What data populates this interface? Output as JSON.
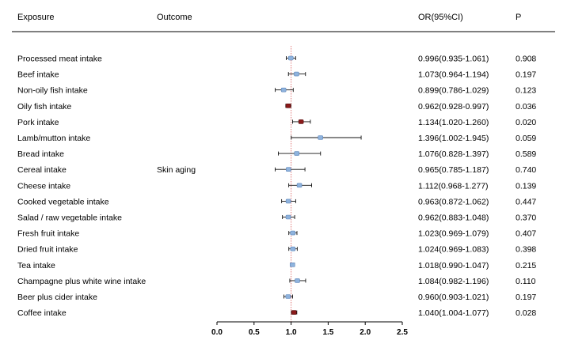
{
  "chart_data": {
    "type": "forest",
    "headers": {
      "exposure": "Exposure",
      "outcome": "Outcome",
      "or": "OR(95%CI)",
      "p": "P"
    },
    "outcome_label": "Skin aging",
    "reference_line": 1,
    "xlim": [
      0,
      2.5
    ],
    "x_ticks": [
      "0.0",
      "0.5",
      "1.0",
      "1.5",
      "2.0",
      "2.5"
    ],
    "colors": {
      "ns": "#8fb3dd",
      "sig": "#8b1a1a",
      "ref_line": "#e07a7a"
    },
    "rows": [
      {
        "exposure": "Processed meat intake",
        "or": 0.996,
        "lo": 0.935,
        "hi": 1.061,
        "or_text": "0.996(0.935-1.061)",
        "p": "0.908",
        "significant": false
      },
      {
        "exposure": "Beef intake",
        "or": 1.073,
        "lo": 0.964,
        "hi": 1.194,
        "or_text": "1.073(0.964-1.194)",
        "p": "0.197",
        "significant": false
      },
      {
        "exposure": "Non-oily fish intake",
        "or": 0.899,
        "lo": 0.786,
        "hi": 1.029,
        "or_text": "0.899(0.786-1.029)",
        "p": "0.123",
        "significant": false
      },
      {
        "exposure": "Oily fish intake",
        "or": 0.962,
        "lo": 0.928,
        "hi": 0.997,
        "or_text": "0.962(0.928-0.997)",
        "p": "0.036",
        "significant": true
      },
      {
        "exposure": "Pork intake",
        "or": 1.134,
        "lo": 1.02,
        "hi": 1.26,
        "or_text": "1.134(1.020-1.260)",
        "p": "0.020",
        "significant": true
      },
      {
        "exposure": "Lamb/mutton intake",
        "or": 1.396,
        "lo": 1.002,
        "hi": 1.945,
        "or_text": "1.396(1.002-1.945)",
        "p": "0.059",
        "significant": false
      },
      {
        "exposure": "Bread intake",
        "or": 1.076,
        "lo": 0.828,
        "hi": 1.397,
        "or_text": "1.076(0.828-1.397)",
        "p": "0.589",
        "significant": false
      },
      {
        "exposure": "Cereal intake",
        "or": 0.965,
        "lo": 0.785,
        "hi": 1.187,
        "or_text": "0.965(0.785-1.187)",
        "p": "0.740",
        "significant": false
      },
      {
        "exposure": "Cheese intake",
        "or": 1.112,
        "lo": 0.968,
        "hi": 1.277,
        "or_text": "1.112(0.968-1.277)",
        "p": "0.139",
        "significant": false
      },
      {
        "exposure": "Cooked vegetable intake",
        "or": 0.963,
        "lo": 0.872,
        "hi": 1.062,
        "or_text": "0.963(0.872-1.062)",
        "p": "0.447",
        "significant": false
      },
      {
        "exposure": "Salad / raw vegetable intake",
        "or": 0.962,
        "lo": 0.883,
        "hi": 1.048,
        "or_text": "0.962(0.883-1.048)",
        "p": "0.370",
        "significant": false
      },
      {
        "exposure": "Fresh fruit intake",
        "or": 1.023,
        "lo": 0.969,
        "hi": 1.079,
        "or_text": "1.023(0.969-1.079)",
        "p": "0.407",
        "significant": false
      },
      {
        "exposure": "Dried fruit intake",
        "or": 1.024,
        "lo": 0.969,
        "hi": 1.083,
        "or_text": "1.024(0.969-1.083)",
        "p": "0.398",
        "significant": false
      },
      {
        "exposure": "Tea intake",
        "or": 1.018,
        "lo": 0.99,
        "hi": 1.047,
        "or_text": "1.018(0.990-1.047)",
        "p": "0.215",
        "significant": false
      },
      {
        "exposure": "Champagne plus white wine intake",
        "or": 1.084,
        "lo": 0.982,
        "hi": 1.196,
        "or_text": "1.084(0.982-1.196)",
        "p": "0.110",
        "significant": false
      },
      {
        "exposure": "Beer plus cider intake",
        "or": 0.96,
        "lo": 0.903,
        "hi": 1.021,
        "or_text": "0.960(0.903-1.021)",
        "p": "0.197",
        "significant": false
      },
      {
        "exposure": "Coffee intake",
        "or": 1.04,
        "lo": 1.004,
        "hi": 1.077,
        "or_text": "1.040(1.004-1.077)",
        "p": "0.028",
        "significant": true
      }
    ]
  }
}
